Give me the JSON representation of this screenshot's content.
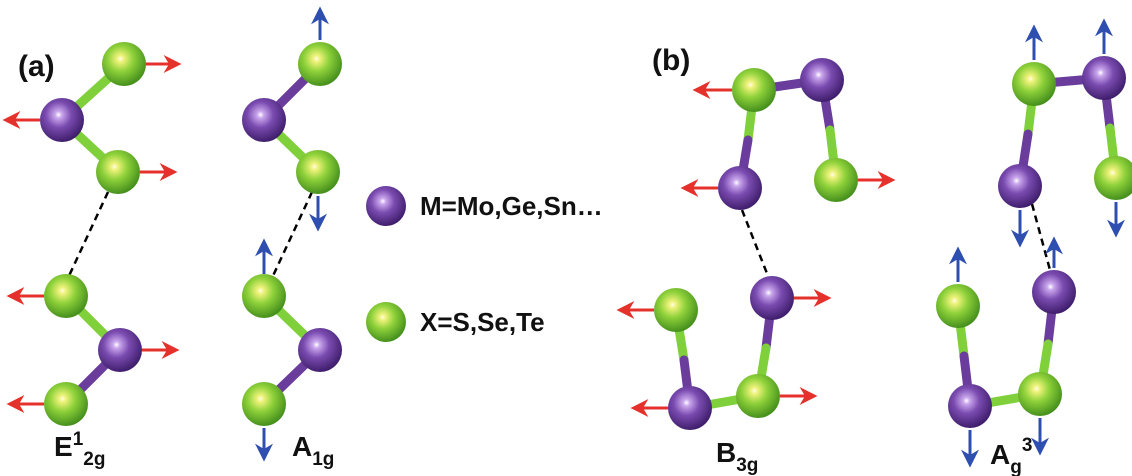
{
  "panels": {
    "a": {
      "label": "(a)"
    },
    "b": {
      "label": "(b)"
    }
  },
  "modes": {
    "e12g": {
      "base": "E",
      "sup": "1",
      "sub": "2g"
    },
    "a1g": {
      "base": "A",
      "sub": "1g"
    },
    "b3g": {
      "base": "B",
      "sub": "3g"
    },
    "ag3": {
      "base": "A",
      "sub": "g",
      "sup": "3"
    }
  },
  "legend": {
    "metal_label": "M=Mo,Ge,Sn…",
    "chalcogen_label": "X=S,Se,Te"
  },
  "colors": {
    "metal_atom": "#6a3c9c",
    "chalcogen_atom": "#8ed13a",
    "in_plane_arrow": "#e4312b",
    "out_of_plane_arrow": "#2f4fb0",
    "interlayer_bond": "#000000"
  },
  "icons": {
    "metal": "purple-sphere",
    "chalcogen": "green-sphere",
    "displacement": "arrow"
  }
}
